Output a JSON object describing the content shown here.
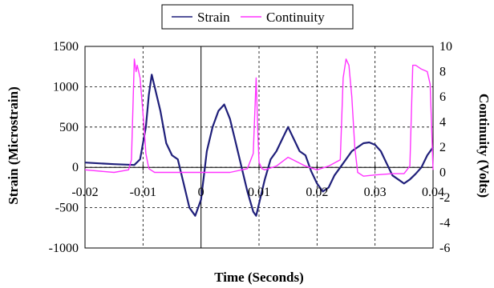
{
  "chart_data": {
    "type": "line",
    "title": "",
    "xlabel": "Time (Seconds)",
    "ylabel_left": "Strain (Microstrain)",
    "ylabel_right": "Continuity (Volts)",
    "xlim": [
      -0.02,
      0.04
    ],
    "ylim_left": [
      -1000,
      1500
    ],
    "ylim_right": [
      -6,
      10
    ],
    "x_ticks": [
      -0.02,
      -0.01,
      0,
      0.01,
      0.02,
      0.03,
      0.04
    ],
    "x_tick_labels": [
      "-0.02",
      "-0.01",
      "0",
      "0.01",
      "0.02",
      "0.03",
      "0.04"
    ],
    "y_left_ticks": [
      1500,
      1000,
      500,
      0,
      -500,
      -1000
    ],
    "y_left_tick_labels": [
      "1500",
      "1000",
      "500",
      "0",
      "-500",
      "-1000"
    ],
    "y_right_ticks": [
      10,
      8,
      6,
      4,
      2,
      0,
      -2,
      -4,
      -6
    ],
    "y_right_tick_labels": [
      "10",
      "8",
      "6",
      "4",
      "2",
      "0",
      "-2",
      "-4",
      "-6"
    ],
    "grid": true,
    "legend_position": "top",
    "series": [
      {
        "name": "Strain",
        "axis": "left",
        "color": "#1f1f7a",
        "x": [
          -0.02,
          -0.015,
          -0.0115,
          -0.0105,
          -0.0095,
          -0.009,
          -0.0085,
          -0.008,
          -0.007,
          -0.006,
          -0.005,
          -0.004,
          -0.003,
          -0.002,
          -0.001,
          0,
          0.001,
          0.002,
          0.003,
          0.004,
          0.005,
          0.006,
          0.007,
          0.008,
          0.009,
          0.0095,
          0.01,
          0.011,
          0.012,
          0.013,
          0.014,
          0.015,
          0.016,
          0.017,
          0.018,
          0.019,
          0.02,
          0.021,
          0.022,
          0.023,
          0.024,
          0.025,
          0.026,
          0.027,
          0.028,
          0.029,
          0.03,
          0.031,
          0.032,
          0.033,
          0.034,
          0.035,
          0.036,
          0.037,
          0.038,
          0.039,
          0.04
        ],
        "y": [
          60,
          40,
          30,
          100,
          500,
          900,
          1150,
          1000,
          700,
          300,
          150,
          100,
          -200,
          -500,
          -600,
          -400,
          200,
          500,
          700,
          780,
          600,
          300,
          0,
          -300,
          -550,
          -600,
          -450,
          -150,
          100,
          200,
          350,
          500,
          350,
          200,
          150,
          -50,
          -200,
          -300,
          -250,
          -100,
          0,
          100,
          200,
          250,
          300,
          310,
          280,
          200,
          50,
          -100,
          -150,
          -200,
          -150,
          -80,
          0,
          150,
          250
        ]
      },
      {
        "name": "Continuity",
        "axis": "right",
        "color": "#ff33ff",
        "x": [
          -0.02,
          -0.015,
          -0.0125,
          -0.012,
          -0.0115,
          -0.0112,
          -0.011,
          -0.0105,
          -0.0098,
          -0.0095,
          -0.009,
          -0.008,
          -0.005,
          0,
          0.005,
          0.008,
          0.009,
          0.0095,
          0.0098,
          0.01,
          0.0105,
          0.011,
          0.013,
          0.015,
          0.018,
          0.02,
          0.022,
          0.024,
          0.0245,
          0.025,
          0.0255,
          0.026,
          0.0265,
          0.027,
          0.028,
          0.03,
          0.033,
          0.035,
          0.036,
          0.0365,
          0.037,
          0.038,
          0.039,
          0.0395,
          0.04
        ],
        "y": [
          0.2,
          0,
          0.2,
          1.0,
          9.0,
          8.0,
          8.5,
          7.5,
          3.5,
          1.5,
          0.3,
          0,
          0,
          0,
          0,
          0.3,
          1.5,
          7.5,
          3.0,
          0.8,
          0.3,
          0.2,
          0.5,
          1.2,
          0.5,
          0.2,
          0.5,
          1.0,
          7.5,
          9.0,
          8.5,
          6.0,
          2.0,
          0,
          -0.3,
          -0.2,
          -0.1,
          -0.1,
          0.5,
          8.5,
          8.5,
          8.2,
          8.0,
          7.0,
          0.2
        ]
      }
    ]
  }
}
